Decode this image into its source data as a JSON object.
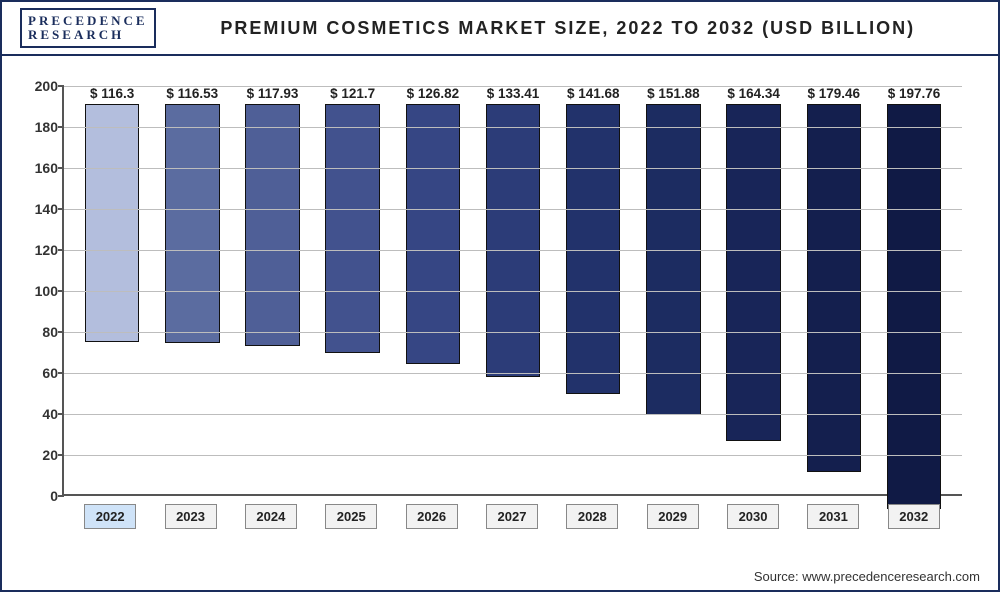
{
  "logo": {
    "line1": "PRECEDENCE",
    "line2": "RESEARCH"
  },
  "title": "PREMIUM COSMETICS MARKET SIZE, 2022 TO 2032 (USD BILLION)",
  "source": "Source: www.precedenceresearch.com",
  "chart": {
    "type": "bar",
    "ylim": [
      0,
      200
    ],
    "ytick_step": 20,
    "yticks": [
      0,
      20,
      40,
      60,
      80,
      100,
      120,
      140,
      160,
      180,
      200
    ],
    "grid_color": "#bdbdbd",
    "background_color": "#ffffff",
    "axis_color": "#555555",
    "value_prefix": "$ ",
    "bar_width": 0.68,
    "title_fontsize": 18,
    "label_fontsize": 14,
    "categories": [
      "2022",
      "2023",
      "2024",
      "2025",
      "2026",
      "2027",
      "2028",
      "2029",
      "2030",
      "2031",
      "2032"
    ],
    "values": [
      116.3,
      116.53,
      117.93,
      121.7,
      126.82,
      133.41,
      141.68,
      151.88,
      164.34,
      179.46,
      197.76
    ],
    "value_labels": [
      "116.3",
      "116.53",
      "117.93",
      "121.7",
      "126.82",
      "133.41",
      "141.68",
      "151.88",
      "164.34",
      "179.46",
      "197.76"
    ],
    "bar_colors": [
      "#b3bedd",
      "#5b6ca0",
      "#4f5f97",
      "#42528e",
      "#364684",
      "#2c3c78",
      "#22326b",
      "#1c2c61",
      "#182558",
      "#141f4e",
      "#101a45"
    ],
    "highlight_index": 0,
    "xlabel_bg": "#f2f2f2",
    "xlabel_highlight_bg": "#cfe3f8"
  }
}
